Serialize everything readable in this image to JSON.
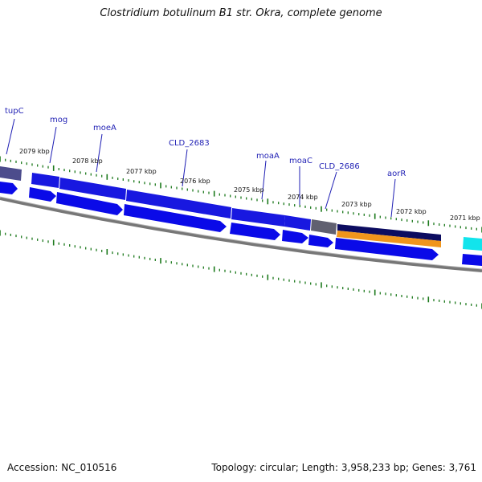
{
  "title": "Clostridium botulinum B1 str. Okra, complete genome",
  "accession_text": "Accession: NC_010516",
  "summary_text": "Topology: circular; Length: 3,958,233 bp; Genes: 3,761",
  "colors": {
    "gene_forward": "#1818e0",
    "gene_reverse": "#0a0ae8",
    "backbone": "#777777",
    "tick": "#1c7a1c",
    "gene_label": "#1f1fb4",
    "rna": "#606070",
    "cds_orange": "#f0951c",
    "cds_navy": "#0c0c60",
    "cyan": "#12e4ec",
    "purple": "#4c4c8c"
  },
  "tick_labels": [
    "2079 kbp",
    "2078 kbp",
    "2077 kbp",
    "2076 kbp",
    "2075 kbp",
    "2074 kbp",
    "2073 kbp",
    "2072 kbp",
    "2071 kbp"
  ],
  "gene_labels": [
    "tupC",
    "mog",
    "moeA",
    "CLD_2683",
    "moaA",
    "moaC",
    "CLD_2686",
    "aorR"
  ]
}
